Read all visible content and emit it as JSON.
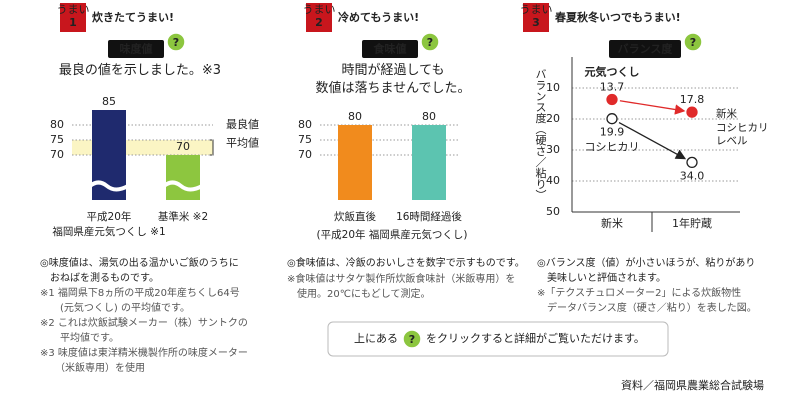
{
  "chart_data": [
    {
      "type": "bar",
      "header": {
        "badge": "うまい",
        "number": "1",
        "title": "炊きたてうまい!"
      },
      "label": "味度値",
      "help_icon": "?",
      "subtitle": "最良の値を示しました。※3",
      "categories": [
        "平成20年\n福岡県産元気つくし ※1",
        "基準米 ※2"
      ],
      "values": [
        85,
        70
      ],
      "colors": [
        "#1f2a6e",
        "#8dc63f"
      ],
      "ylim": [
        55,
        90
      ],
      "yticks": [
        70,
        75,
        80
      ],
      "grid": true,
      "axis_break": true,
      "reference_lines": [
        {
          "value": 80,
          "label": "最良値"
        }
      ],
      "bands": [
        {
          "range": [
            70,
            75
          ],
          "label": "平均値",
          "color": "#fbf5c4"
        }
      ],
      "annotations": [
        "◎味度値は、湯気の出る温かいご飯のうちに\n　おねばを測るものです。",
        "※1 福岡県下8ヵ所の平成20年産ちくし64号\n　　(元気つくし) の平均値です。",
        "※2 これは炊飯試験メーカー（株）サントクの\n　　平均値です。",
        "※3 味度値は東洋精米機製作所の味度メーター\n　　（米飯専用）を使用"
      ]
    },
    {
      "type": "bar",
      "header": {
        "badge": "うまい",
        "number": "2",
        "title": "冷めてもうまい!"
      },
      "label": "食味値",
      "help_icon": "?",
      "subtitle": "時間が経過しても\n数値は落ちませんでした。",
      "categories": [
        "炊飯直後",
        "16時間経過後"
      ],
      "xlabel": "(平成20年 福岡県産元気つくし)",
      "values": [
        80,
        80
      ],
      "colors": [
        "#f18b1d",
        "#5cc4b0"
      ],
      "ylim": [
        55,
        90
      ],
      "yticks": [
        70,
        75,
        80
      ],
      "grid": true,
      "annotations": [
        "◎食味値は、冷飯のおいしさを数字で示すものです。",
        "※食味値はサタケ製作所炊飯食味計（米飯専用）を\n　使用。20℃にもどして測定。"
      ]
    },
    {
      "type": "line",
      "header": {
        "badge": "うまい",
        "number": "3",
        "title": "春夏秋冬いつでもうまい!"
      },
      "label": "バランス度",
      "help_icon": "?",
      "ylabel": "バランス度（硬さ／粘り）",
      "categories": [
        "新米",
        "1年貯蔵"
      ],
      "series": [
        {
          "name": "元気つくし",
          "color": "#e02a2a",
          "values": [
            13.7,
            17.8
          ]
        },
        {
          "name": "コシヒカリ",
          "color": "#222222",
          "values": [
            19.9,
            34.0
          ],
          "value_labels": [
            "19.9",
            "34.0"
          ]
        }
      ],
      "ylim": [
        50,
        0
      ],
      "yticks": [
        10,
        20,
        30,
        40,
        50
      ],
      "grid": true,
      "note": "新米\nコシヒカリ\nレベル",
      "annotations": [
        "◎バランス度（値）が小さいほうが、粘りがあり\n　美味しいと評価されます。",
        "※「テクスチュロメーター2」による炊飯物性\n　データバランス度（硬さ／粘り）を表した図。"
      ]
    }
  ],
  "footer": {
    "text_before": "上にある",
    "help_icon": "?",
    "text_after": "をクリックすると詳細がご覧いただけます。",
    "source": "資料／福岡県農業総合試験場"
  }
}
